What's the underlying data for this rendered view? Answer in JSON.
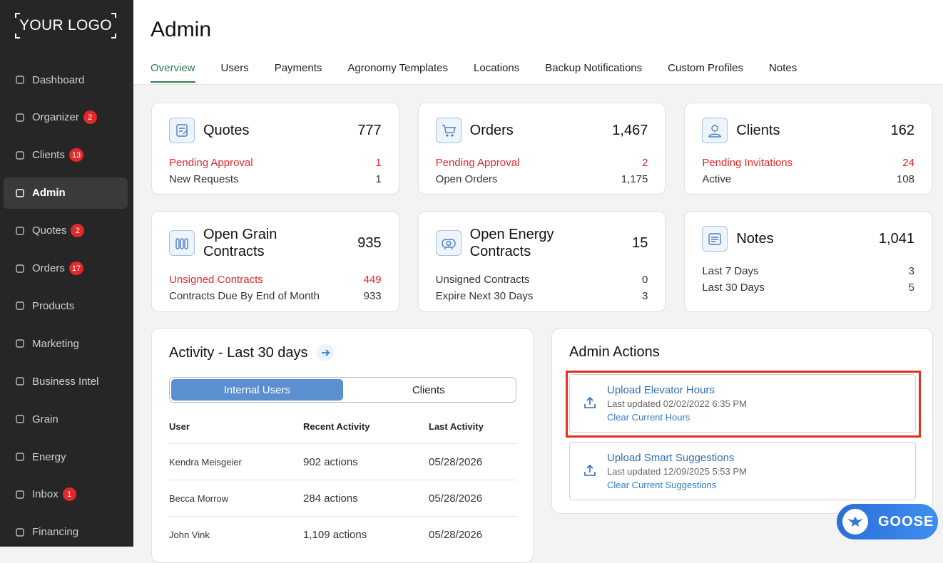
{
  "sidebar": {
    "logo": "YOUR LOGO",
    "items": [
      {
        "label": "Dashboard"
      },
      {
        "label": "Organizer",
        "badge": "2"
      },
      {
        "label": "Clients",
        "badge": "13"
      },
      {
        "label": "Admin",
        "active": true
      },
      {
        "label": "Quotes",
        "badge": "2"
      },
      {
        "label": "Orders",
        "badge": "17"
      },
      {
        "label": "Products"
      },
      {
        "label": "Marketing"
      },
      {
        "label": "Business Intel"
      },
      {
        "label": "Grain"
      },
      {
        "label": "Energy"
      },
      {
        "label": "Inbox",
        "badge": "1"
      },
      {
        "label": "Financing"
      }
    ]
  },
  "header": {
    "title": "Admin",
    "tabs": [
      {
        "label": "Overview",
        "active": true
      },
      {
        "label": "Users"
      },
      {
        "label": "Payments"
      },
      {
        "label": "Agronomy Templates"
      },
      {
        "label": "Locations"
      },
      {
        "label": "Backup Notifications"
      },
      {
        "label": "Custom Profiles"
      },
      {
        "label": "Notes"
      }
    ]
  },
  "cards": [
    {
      "title": "Quotes",
      "total": "777",
      "rows": [
        {
          "label": "Pending Approval",
          "value": "1",
          "alert": true
        },
        {
          "label": "New Requests",
          "value": "1"
        }
      ]
    },
    {
      "title": "Orders",
      "total": "1,467",
      "rows": [
        {
          "label": "Pending Approval",
          "value": "2",
          "alert": true
        },
        {
          "label": "Open Orders",
          "value": "1,175"
        }
      ]
    },
    {
      "title": "Clients",
      "total": "162",
      "rows": [
        {
          "label": "Pending Invitations",
          "value": "24",
          "alert": true
        },
        {
          "label": "Active",
          "value": "108"
        }
      ]
    },
    {
      "title": "Open Grain Contracts",
      "total": "935",
      "rows": [
        {
          "label": "Unsigned Contracts",
          "value": "449",
          "alert": true
        },
        {
          "label": "Contracts Due By End of Month",
          "value": "933"
        }
      ]
    },
    {
      "title": "Open Energy Contracts",
      "total": "15",
      "rows": [
        {
          "label": "Unsigned Contracts",
          "value": "0"
        },
        {
          "label": "Expire Next 30 Days",
          "value": "3"
        }
      ]
    },
    {
      "title": "Notes",
      "total": "1,041",
      "rows": [
        {
          "label": "Last 7 Days",
          "value": "3"
        },
        {
          "label": "Last 30 Days",
          "value": "5"
        }
      ]
    }
  ],
  "activity": {
    "title": "Activity - Last 30 days",
    "tabs": [
      {
        "label": "Internal Users",
        "active": true
      },
      {
        "label": "Clients"
      }
    ],
    "columns": [
      "User",
      "Recent Activity",
      "Last Activity"
    ],
    "rows": [
      [
        "Kendra Meisgeier",
        "902 actions",
        "05/28/2026"
      ],
      [
        "Becca Morrow",
        "284 actions",
        "05/28/2026"
      ],
      [
        "John Vink",
        "1,109 actions",
        "05/28/2026"
      ]
    ]
  },
  "admin_actions": {
    "title": "Admin Actions",
    "items": [
      {
        "title": "Upload Elevator Hours",
        "updated": "Last updated 02/02/2022 6:35 PM",
        "link": "Clear Current Hours",
        "highlighted": true
      },
      {
        "title": "Upload Smart Suggestions",
        "updated": "Last updated 12/09/2025 5:53 PM",
        "link": "Clear Current Suggestions"
      }
    ]
  },
  "assistant": {
    "label": "GOOSE"
  }
}
